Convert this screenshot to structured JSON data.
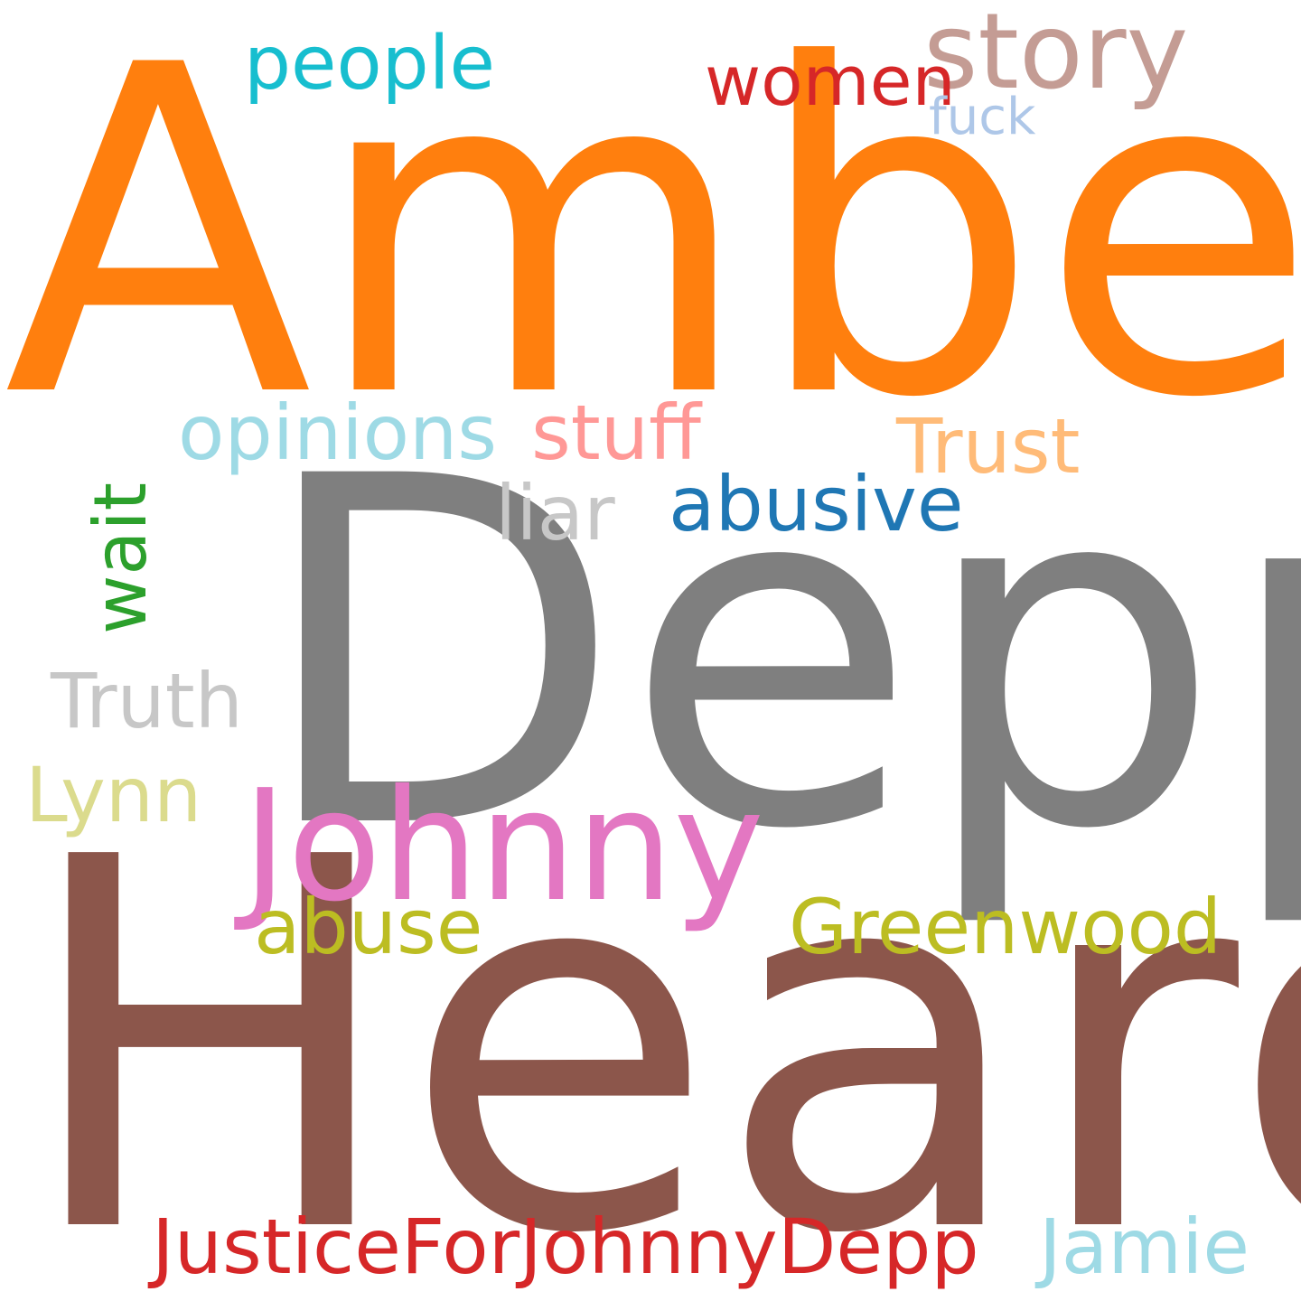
{
  "words": [
    {
      "text": "Amber",
      "color": "#ff7f0e"
    },
    {
      "text": "Depp",
      "color": "#7f7f7f"
    },
    {
      "text": "Heard",
      "color": "#8c564b"
    },
    {
      "text": "Johnny",
      "color": "#e377c2"
    },
    {
      "text": "story",
      "color": "#c49c94"
    },
    {
      "text": "people",
      "color": "#17becf"
    },
    {
      "text": "women",
      "color": "#d62728"
    },
    {
      "text": "fuck",
      "color": "#aec7e8"
    },
    {
      "text": "opinions",
      "color": "#9edae5"
    },
    {
      "text": "stuff",
      "color": "#ff9896"
    },
    {
      "text": "Trust",
      "color": "#ffbb78"
    },
    {
      "text": "wait",
      "color": "#2ca02c"
    },
    {
      "text": "liar",
      "color": "#c7c7c7"
    },
    {
      "text": "abusive",
      "color": "#1f77b4"
    },
    {
      "text": "Truth",
      "color": "#c7c7c7"
    },
    {
      "text": "Lynn",
      "color": "#dbdb8d"
    },
    {
      "text": "abuse",
      "color": "#bcbd22"
    },
    {
      "text": "Greenwood",
      "color": "#bcbd22"
    },
    {
      "text": "JusticeForJohnnyDepp",
      "color": "#d62728"
    },
    {
      "text": "Jamie",
      "color": "#9edae5"
    }
  ]
}
